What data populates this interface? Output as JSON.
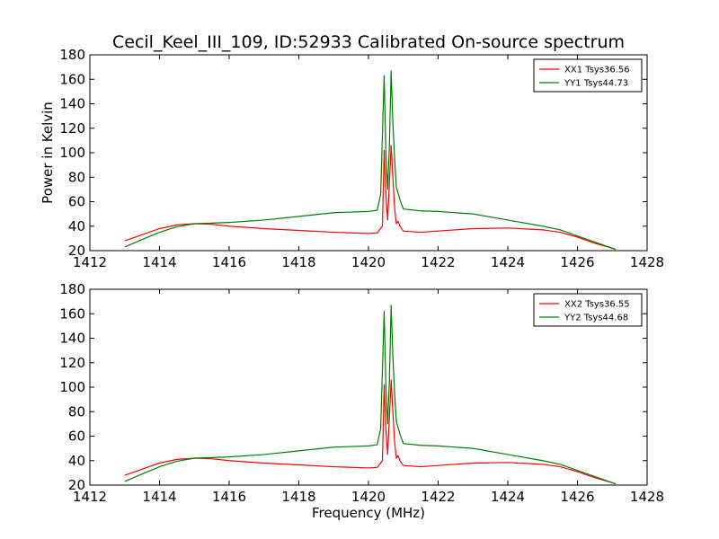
{
  "figure": {
    "title": "Cecil_Keel_III_109, ID:52933 Calibrated On-source spectrum"
  },
  "chart_data": [
    {
      "type": "line",
      "title": "Cecil_Keel_III_109, ID:52933 Calibrated On-source spectrum",
      "xlabel": "",
      "ylabel": "Power in Kelvin",
      "xlim": [
        1412,
        1428
      ],
      "ylim": [
        20,
        180
      ],
      "xticks": [
        1412,
        1414,
        1416,
        1418,
        1420,
        1422,
        1424,
        1426,
        1428
      ],
      "yticks": [
        20,
        40,
        60,
        80,
        100,
        120,
        140,
        160,
        180
      ],
      "grid": false,
      "legend_position": "top-right",
      "series": [
        {
          "name": "XX1 Tsys36.56",
          "color": "#ff0000",
          "x": [
            1413,
            1413.5,
            1414,
            1414.5,
            1415,
            1415.5,
            1416,
            1417,
            1418,
            1419,
            1420,
            1420.25,
            1420.4,
            1420.45,
            1420.5,
            1420.55,
            1420.6,
            1420.65,
            1420.7,
            1420.75,
            1420.8,
            1420.85,
            1420.9,
            1421,
            1421.5,
            1422,
            1423,
            1424,
            1425,
            1425.5,
            1426,
            1426.5,
            1427,
            1427.1
          ],
          "values": [
            28,
            33,
            38,
            41,
            42,
            41.5,
            40,
            38,
            36.5,
            35,
            34,
            34.5,
            40,
            102,
            66,
            45,
            75,
            106,
            80,
            55,
            42,
            44,
            40,
            36,
            35,
            36,
            38,
            38.5,
            37,
            35,
            31,
            26,
            22,
            21
          ]
        },
        {
          "name": "YY1 Tsys44.73",
          "color": "#008000",
          "x": [
            1413,
            1413.5,
            1414,
            1414.5,
            1415,
            1415.5,
            1416,
            1417,
            1418,
            1419,
            1420,
            1420.25,
            1420.35,
            1420.45,
            1420.5,
            1420.55,
            1420.6,
            1420.65,
            1420.7,
            1420.75,
            1420.8,
            1420.85,
            1420.9,
            1421,
            1421.5,
            1422,
            1423,
            1424,
            1425,
            1425.5,
            1426,
            1426.5,
            1427,
            1427.1
          ],
          "values": [
            23,
            29,
            35,
            39.5,
            42,
            42.5,
            43,
            45,
            48,
            51,
            52,
            53,
            66,
            163,
            100,
            70,
            105,
            167,
            125,
            95,
            72,
            67,
            62,
            54,
            52.5,
            52,
            50,
            45,
            40,
            37,
            32,
            27,
            22,
            21
          ]
        }
      ]
    },
    {
      "type": "line",
      "title": "",
      "xlabel": "Frequency (MHz)",
      "ylabel": "",
      "xlim": [
        1412,
        1428
      ],
      "ylim": [
        20,
        180
      ],
      "xticks": [
        1412,
        1414,
        1416,
        1418,
        1420,
        1422,
        1424,
        1426,
        1428
      ],
      "yticks": [
        20,
        40,
        60,
        80,
        100,
        120,
        140,
        160,
        180
      ],
      "grid": false,
      "legend_position": "top-right",
      "series": [
        {
          "name": "XX2 Tsys36.55",
          "color": "#ff0000",
          "x": [
            1413,
            1413.5,
            1414,
            1414.5,
            1415,
            1415.5,
            1416,
            1417,
            1418,
            1419,
            1420,
            1420.25,
            1420.4,
            1420.45,
            1420.5,
            1420.55,
            1420.6,
            1420.65,
            1420.7,
            1420.75,
            1420.8,
            1420.85,
            1420.9,
            1421,
            1421.5,
            1422,
            1423,
            1424,
            1425,
            1425.5,
            1426,
            1426.5,
            1427,
            1427.1
          ],
          "values": [
            28,
            33,
            38,
            41,
            42,
            41.5,
            40,
            38,
            36.5,
            35,
            34,
            34.5,
            40,
            102,
            66,
            45,
            75,
            106,
            80,
            55,
            42,
            44,
            40,
            36,
            35,
            36,
            38,
            38.5,
            37,
            35,
            31,
            26,
            22,
            21
          ]
        },
        {
          "name": "YY2 Tsys44.68",
          "color": "#008000",
          "x": [
            1413,
            1413.5,
            1414,
            1414.5,
            1415,
            1415.5,
            1416,
            1417,
            1418,
            1419,
            1420,
            1420.25,
            1420.35,
            1420.45,
            1420.5,
            1420.55,
            1420.6,
            1420.65,
            1420.7,
            1420.75,
            1420.8,
            1420.85,
            1420.9,
            1421,
            1421.5,
            1422,
            1423,
            1424,
            1425,
            1425.5,
            1426,
            1426.5,
            1427,
            1427.1
          ],
          "values": [
            23,
            29,
            35,
            39.5,
            42,
            42.5,
            43,
            45,
            48,
            51,
            52,
            53,
            66,
            162,
            100,
            70,
            105,
            167,
            125,
            95,
            72,
            67,
            62,
            54,
            52.5,
            52,
            50,
            45,
            40,
            37,
            32,
            27,
            22,
            21
          ]
        }
      ]
    }
  ]
}
